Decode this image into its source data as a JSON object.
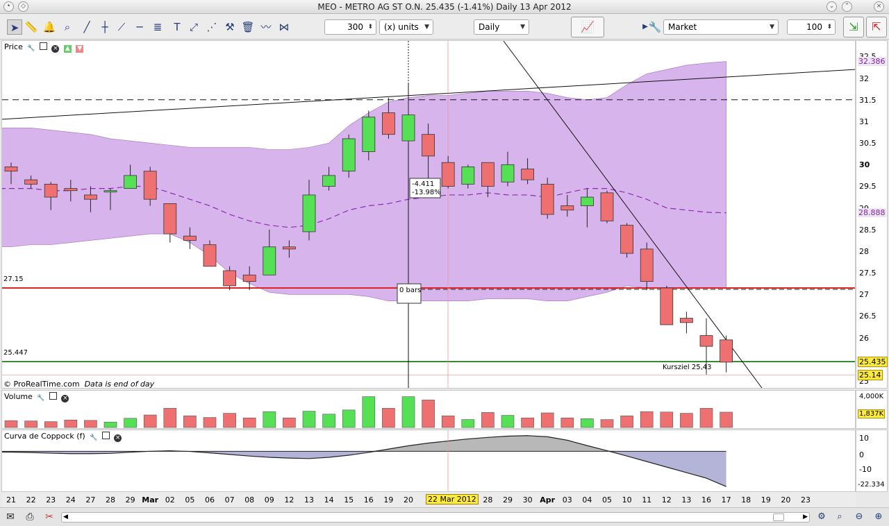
{
  "window": {
    "title": "MEO - METRO AG ST O.N.     25.435  (-1.41%)     Daily   13 Apr 2012"
  },
  "toolbar": {
    "units_value": "300",
    "units_label": "(x) units",
    "timeframe": "Daily",
    "order_type": "Market",
    "quantity": "100"
  },
  "price_panel": {
    "label": "Price",
    "level_red_label": "27.15",
    "level_green_label": "25.447",
    "measure_text_1": "-4.411",
    "measure_text_2": "-13.98%",
    "bars_text": "0 bars",
    "annotation": "Kursziel 25,43",
    "footer_brand": "© ProRealTime.com",
    "footer_note": "Data is end of day",
    "scale_ticks": [
      "32.5",
      "32",
      "31.5",
      "31",
      "30.5",
      "30",
      "29.5",
      "29",
      "28.5",
      "28",
      "27.5",
      "27",
      "26.5",
      "26",
      "25.5",
      "25"
    ],
    "badge_upper": "32.386",
    "badge_mid": "28.888",
    "badge_last": "25.435",
    "badge_cursor": "25.14"
  },
  "volume_panel": {
    "label": "Volume",
    "scale_top": "4,000K",
    "badge": "1,837K"
  },
  "coppock_panel": {
    "label": "Curva de Coppock (f)",
    "ticks": [
      "10",
      "0",
      "-10"
    ],
    "badge": "-22.334"
  },
  "x_axis": {
    "labels": [
      "21",
      "22",
      "23",
      "24",
      "27",
      "28",
      "29",
      "Mar",
      "02",
      "05",
      "06",
      "07",
      "08",
      "09",
      "12",
      "13",
      "14",
      "15",
      "16",
      "19",
      "20",
      "",
      "26",
      "27",
      "28",
      "29",
      "30",
      "Apr",
      "03",
      "04",
      "05",
      "10",
      "11",
      "12",
      "13",
      "16",
      "17",
      "18",
      "19",
      "20",
      "23"
    ],
    "cursor_date": "22 Mar 2012"
  },
  "colors": {
    "bull": "#55e055",
    "bear": "#ee7070",
    "band": "#d8b4ec",
    "level_red": "#dd2222",
    "level_green": "#1a7a1a"
  },
  "chart_data": {
    "type": "candlestick",
    "title": "MEO - METRO AG ST O.N.",
    "series": [
      {
        "name": "Price",
        "ohlc": [
          {
            "o": 29.95,
            "h": 30.05,
            "l": 29.55,
            "c": 29.85
          },
          {
            "o": 29.65,
            "h": 29.75,
            "l": 29.45,
            "c": 29.55
          },
          {
            "o": 29.55,
            "h": 29.6,
            "l": 28.95,
            "c": 29.25
          },
          {
            "o": 29.45,
            "h": 29.65,
            "l": 29.15,
            "c": 29.4
          },
          {
            "o": 29.3,
            "h": 29.5,
            "l": 28.9,
            "c": 29.2
          },
          {
            "o": 29.4,
            "h": 29.45,
            "l": 28.95,
            "c": 29.4
          },
          {
            "o": 29.45,
            "h": 30.0,
            "l": 29.45,
            "c": 29.75
          },
          {
            "o": 29.85,
            "h": 29.95,
            "l": 29.05,
            "c": 29.2
          },
          {
            "o": 29.1,
            "h": 29.1,
            "l": 28.2,
            "c": 28.4
          },
          {
            "o": 28.35,
            "h": 28.55,
            "l": 28.05,
            "c": 28.25
          },
          {
            "o": 28.15,
            "h": 28.25,
            "l": 27.65,
            "c": 27.65
          },
          {
            "o": 27.55,
            "h": 27.65,
            "l": 27.1,
            "c": 27.2
          },
          {
            "o": 27.45,
            "h": 27.65,
            "l": 27.1,
            "c": 27.3
          },
          {
            "o": 27.45,
            "h": 28.5,
            "l": 27.45,
            "c": 28.1
          },
          {
            "o": 28.1,
            "h": 28.25,
            "l": 27.85,
            "c": 28.05
          },
          {
            "o": 28.45,
            "h": 29.65,
            "l": 28.25,
            "c": 29.3
          },
          {
            "o": 29.5,
            "h": 29.95,
            "l": 29.4,
            "c": 29.75
          },
          {
            "o": 29.85,
            "h": 30.7,
            "l": 29.7,
            "c": 30.6
          },
          {
            "o": 30.3,
            "h": 31.25,
            "l": 30.1,
            "c": 31.1
          },
          {
            "o": 31.2,
            "h": 31.55,
            "l": 30.6,
            "c": 30.7
          },
          {
            "o": 30.55,
            "h": 31.5,
            "l": 30.5,
            "c": 31.15
          },
          {
            "o": 30.7,
            "h": 30.95,
            "l": 29.65,
            "c": 30.2
          },
          {
            "o": 30.05,
            "h": 30.2,
            "l": 29.45,
            "c": 29.5
          },
          {
            "o": 29.55,
            "h": 30.0,
            "l": 29.45,
            "c": 29.95
          },
          {
            "o": 30.05,
            "h": 30.05,
            "l": 29.25,
            "c": 29.5
          },
          {
            "o": 29.6,
            "h": 30.3,
            "l": 29.5,
            "c": 30.0
          },
          {
            "o": 29.9,
            "h": 30.15,
            "l": 29.55,
            "c": 29.65
          },
          {
            "o": 29.55,
            "h": 29.7,
            "l": 28.75,
            "c": 28.85
          },
          {
            "o": 29.05,
            "h": 29.3,
            "l": 28.8,
            "c": 28.95
          },
          {
            "o": 29.05,
            "h": 29.45,
            "l": 28.55,
            "c": 29.25
          },
          {
            "o": 29.35,
            "h": 29.4,
            "l": 28.65,
            "c": 28.7
          },
          {
            "o": 28.6,
            "h": 28.65,
            "l": 27.85,
            "c": 27.95
          },
          {
            "o": 28.05,
            "h": 28.2,
            "l": 27.1,
            "c": 27.3
          },
          {
            "o": 27.15,
            "h": 27.2,
            "l": 26.3,
            "c": 26.3
          },
          {
            "o": 26.45,
            "h": 26.6,
            "l": 26.1,
            "c": 26.35
          },
          {
            "o": 26.05,
            "h": 26.45,
            "l": 25.15,
            "c": 25.8
          },
          {
            "o": 25.95,
            "h": 26.05,
            "l": 25.2,
            "c": 25.435
          }
        ]
      },
      {
        "name": "Volume",
        "values": [
          820,
          780,
          700,
          900,
          850,
          650,
          1100,
          1500,
          2300,
          1400,
          1200,
          1700,
          1150,
          1900,
          1150,
          1950,
          1600,
          2100,
          3700,
          2300,
          3700,
          3300,
          1400,
          950,
          1800,
          1450,
          1150,
          1750,
          1150,
          1050,
          950,
          1400,
          1900,
          1850,
          1700,
          2300,
          1837
        ]
      },
      {
        "name": "Curva de Coppock (f)",
        "values": [
          -0.5,
          -0.8,
          -1.2,
          -1.5,
          -1.5,
          -1.3,
          -0.6,
          0.0,
          0.3,
          -0.1,
          -1.0,
          -2.0,
          -3.0,
          -3.8,
          -4.3,
          -4.6,
          -3.8,
          -2.5,
          -0.7,
          1.4,
          3.5,
          5.2,
          6.5,
          7.8,
          8.8,
          9.6,
          9.9,
          9.2,
          7.0,
          3.6,
          0.4,
          -3.0,
          -6.5,
          -10.0,
          -13.5,
          -17.0,
          -22.334
        ]
      },
      {
        "name": "Bollinger Middle",
        "values": [
          29.45,
          29.45,
          29.4,
          29.4,
          29.45,
          29.45,
          29.5,
          29.5,
          29.35,
          29.2,
          29.05,
          28.85,
          28.7,
          28.6,
          28.55,
          28.6,
          28.75,
          28.95,
          29.05,
          29.1,
          29.2,
          29.25,
          29.3,
          29.3,
          29.35,
          29.3,
          29.3,
          29.25,
          29.35,
          29.45,
          29.45,
          29.35,
          29.2,
          29.0,
          28.95,
          28.9,
          28.888
        ]
      },
      {
        "name": "Bollinger Upper",
        "values": [
          30.85,
          30.85,
          30.8,
          30.75,
          30.7,
          30.6,
          30.55,
          30.5,
          30.45,
          30.4,
          30.4,
          30.4,
          30.4,
          30.35,
          30.35,
          30.4,
          30.5,
          30.9,
          31.2,
          31.45,
          31.55,
          31.6,
          31.6,
          31.65,
          31.7,
          31.7,
          31.7,
          31.65,
          31.55,
          31.5,
          31.55,
          31.85,
          32.1,
          32.2,
          32.3,
          32.35,
          32.386
        ]
      },
      {
        "name": "Bollinger Lower",
        "values": [
          28.1,
          28.15,
          28.15,
          28.2,
          28.25,
          28.3,
          28.35,
          28.4,
          28.4,
          28.2,
          27.9,
          27.5,
          27.25,
          27.05,
          27.0,
          27.0,
          27.0,
          27.0,
          26.95,
          26.85,
          26.85,
          26.85,
          26.85,
          26.85,
          26.9,
          26.9,
          26.9,
          26.85,
          26.85,
          26.95,
          27.05,
          27.2,
          27.15,
          27.15,
          27.15,
          27.15,
          27.15
        ]
      }
    ],
    "price_ylim": [
      25.0,
      32.7
    ],
    "volume_ylim": [
      0,
      4000
    ],
    "coppock_ylim": [
      -24,
      12
    ],
    "levels": [
      31.5,
      27.15,
      25.447
    ],
    "legend": "none",
    "grid": false
  }
}
